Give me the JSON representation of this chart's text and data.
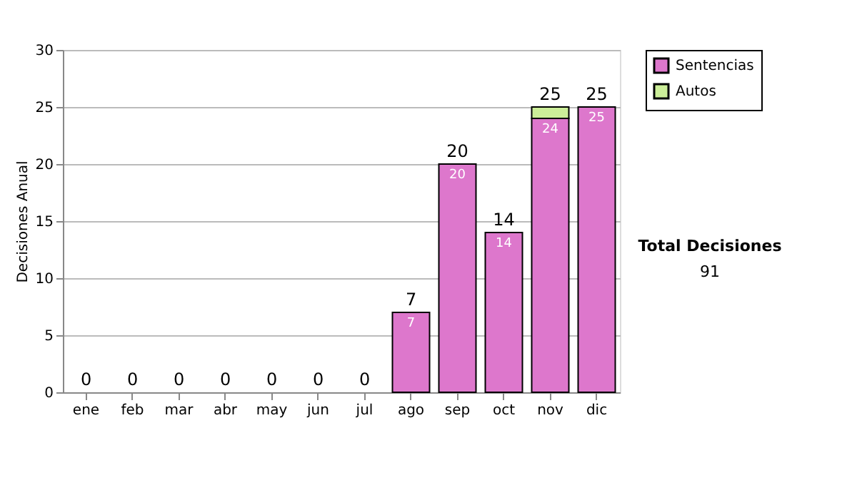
{
  "chart_data": {
    "type": "bar",
    "stacked": true,
    "ylabel": "Decisiones Anual",
    "categories": [
      "ene",
      "feb",
      "mar",
      "abr",
      "may",
      "jun",
      "jul",
      "ago",
      "sep",
      "oct",
      "nov",
      "dic"
    ],
    "series": [
      {
        "name": "Sentencias",
        "color": "#dd77cc",
        "values": [
          0,
          0,
          0,
          0,
          0,
          0,
          0,
          7,
          20,
          14,
          24,
          25
        ],
        "value_labels": [
          null,
          null,
          null,
          null,
          null,
          null,
          null,
          "7",
          "20",
          "14",
          "24",
          "25"
        ]
      },
      {
        "name": "Autos",
        "color": "#ccee99",
        "values": [
          0,
          0,
          0,
          0,
          0,
          0,
          0,
          0,
          0,
          0,
          1,
          0
        ]
      }
    ],
    "totals": [
      "0",
      "0",
      "0",
      "0",
      "0",
      "0",
      "0",
      "7",
      "20",
      "14",
      "25",
      "25"
    ],
    "ylim": [
      0,
      30
    ],
    "yticks": [
      0,
      5,
      10,
      15,
      20,
      25,
      30
    ],
    "grid": "y",
    "legend": "right",
    "annotations": [
      "Total Decisiones",
      "91"
    ]
  }
}
